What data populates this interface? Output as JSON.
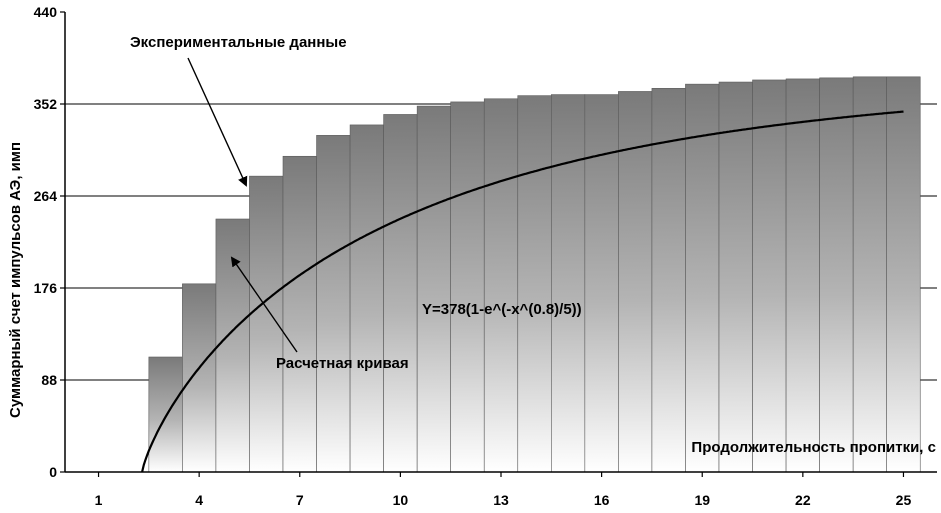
{
  "chart_data": {
    "type": "bar",
    "ylabel": "Суммарный счет импульсов АЭ, имп",
    "xlabel": "Продолжительность пропитки, с",
    "ylim": [
      0,
      440
    ],
    "yticks": [
      0,
      88,
      176,
      264,
      352,
      440
    ],
    "xticks": [
      "1",
      "4",
      "7",
      "10",
      "13",
      "16",
      "19",
      "22",
      "25"
    ],
    "grid": "horizontal",
    "bar_color": "#7a7a7a",
    "series": [
      {
        "kind": "bars",
        "x": [
          3,
          4,
          5,
          6,
          7,
          8,
          9,
          10,
          11,
          12,
          13,
          14,
          15,
          16,
          17,
          18,
          19,
          20,
          21,
          22,
          23,
          24,
          25
        ],
        "values": [
          110,
          180,
          242,
          283,
          302,
          322,
          332,
          342,
          350,
          354,
          357,
          360,
          361,
          361,
          364,
          367,
          371,
          373,
          375,
          376,
          377,
          378,
          378
        ]
      },
      {
        "kind": "line",
        "formula_params": {
          "A": 378,
          "p": 0.8,
          "d": 5,
          "x_offset": 2.3
        }
      }
    ],
    "annotations": {
      "experimental": "Экспериментальные данные",
      "calculated": "Расчетная кривая",
      "formula": "Y=378(1-e^(-x^(0.8)/5))"
    }
  }
}
